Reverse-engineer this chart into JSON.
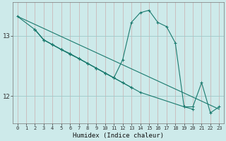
{
  "bg_color": "#cdeaea",
  "grid_color_v": "#b8d8d8",
  "grid_color_h": "#9ec8c8",
  "line_color": "#1a7a6e",
  "xlim": [
    -0.5,
    23.5
  ],
  "ylim": [
    11.55,
    13.55
  ],
  "yticks": [
    12,
    13
  ],
  "xticks": [
    0,
    1,
    2,
    3,
    4,
    5,
    6,
    7,
    8,
    9,
    10,
    11,
    12,
    13,
    14,
    15,
    16,
    17,
    18,
    19,
    20,
    21,
    22,
    23
  ],
  "xlabel": "Humidex (Indice chaleur)",
  "series": [
    {
      "x": [
        0,
        23
      ],
      "y": [
        13.32,
        11.78
      ],
      "marker": false
    },
    {
      "x": [
        0,
        2,
        3,
        4,
        5,
        6,
        7,
        8,
        9,
        10,
        11,
        12,
        13,
        14,
        19,
        20
      ],
      "y": [
        13.32,
        13.1,
        12.93,
        12.85,
        12.77,
        12.69,
        12.62,
        12.54,
        12.46,
        12.38,
        12.3,
        12.22,
        12.14,
        12.06,
        11.82,
        11.78
      ],
      "marker": true
    },
    {
      "x": [
        2,
        3,
        4,
        5,
        6,
        7,
        8,
        9,
        10,
        11,
        12,
        13
      ],
      "y": [
        13.1,
        12.93,
        12.85,
        12.77,
        12.7,
        12.62,
        12.54,
        12.46,
        12.38,
        12.3,
        12.22,
        12.14
      ],
      "marker": true
    },
    {
      "x": [
        2,
        3,
        4,
        5,
        6,
        7,
        8,
        9,
        10,
        11,
        12,
        13,
        14,
        15,
        16,
        17,
        18,
        19,
        20,
        21,
        22,
        23
      ],
      "y": [
        13.1,
        12.93,
        12.85,
        12.77,
        12.7,
        12.62,
        12.54,
        12.46,
        12.38,
        12.3,
        12.6,
        13.22,
        13.38,
        13.42,
        13.22,
        13.15,
        12.88,
        11.82,
        11.82,
        12.22,
        11.72,
        11.82
      ],
      "marker": true
    }
  ]
}
